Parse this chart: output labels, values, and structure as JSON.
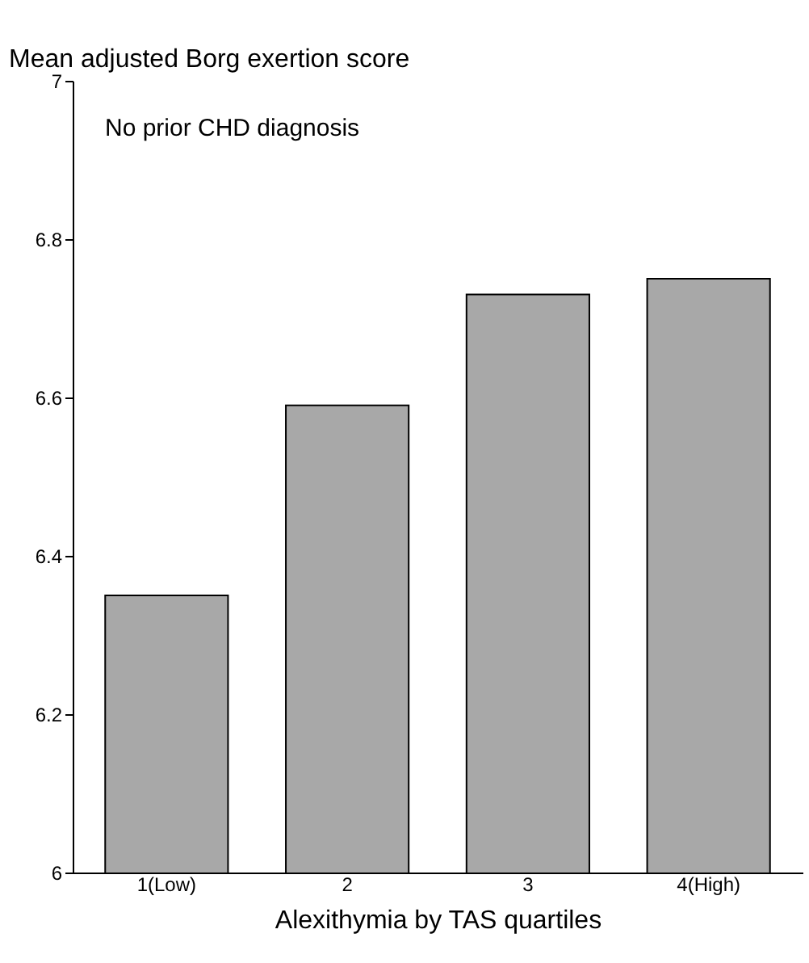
{
  "chart_data": {
    "type": "bar",
    "ylabel": "Mean adjusted Borg exertion score",
    "xlabel": "Alexithymia by TAS quartiles",
    "annotations": [
      "No prior CHD diagnosis"
    ],
    "categories": [
      "1(Low)",
      "2",
      "3",
      "4(High)"
    ],
    "values": [
      6.35,
      6.59,
      6.73,
      6.75
    ],
    "color": "#a8a8a8",
    "ylim": [
      6,
      7
    ],
    "yticks": [
      6,
      6.2,
      6.4,
      6.6,
      6.8,
      7
    ],
    "grid": false
  }
}
